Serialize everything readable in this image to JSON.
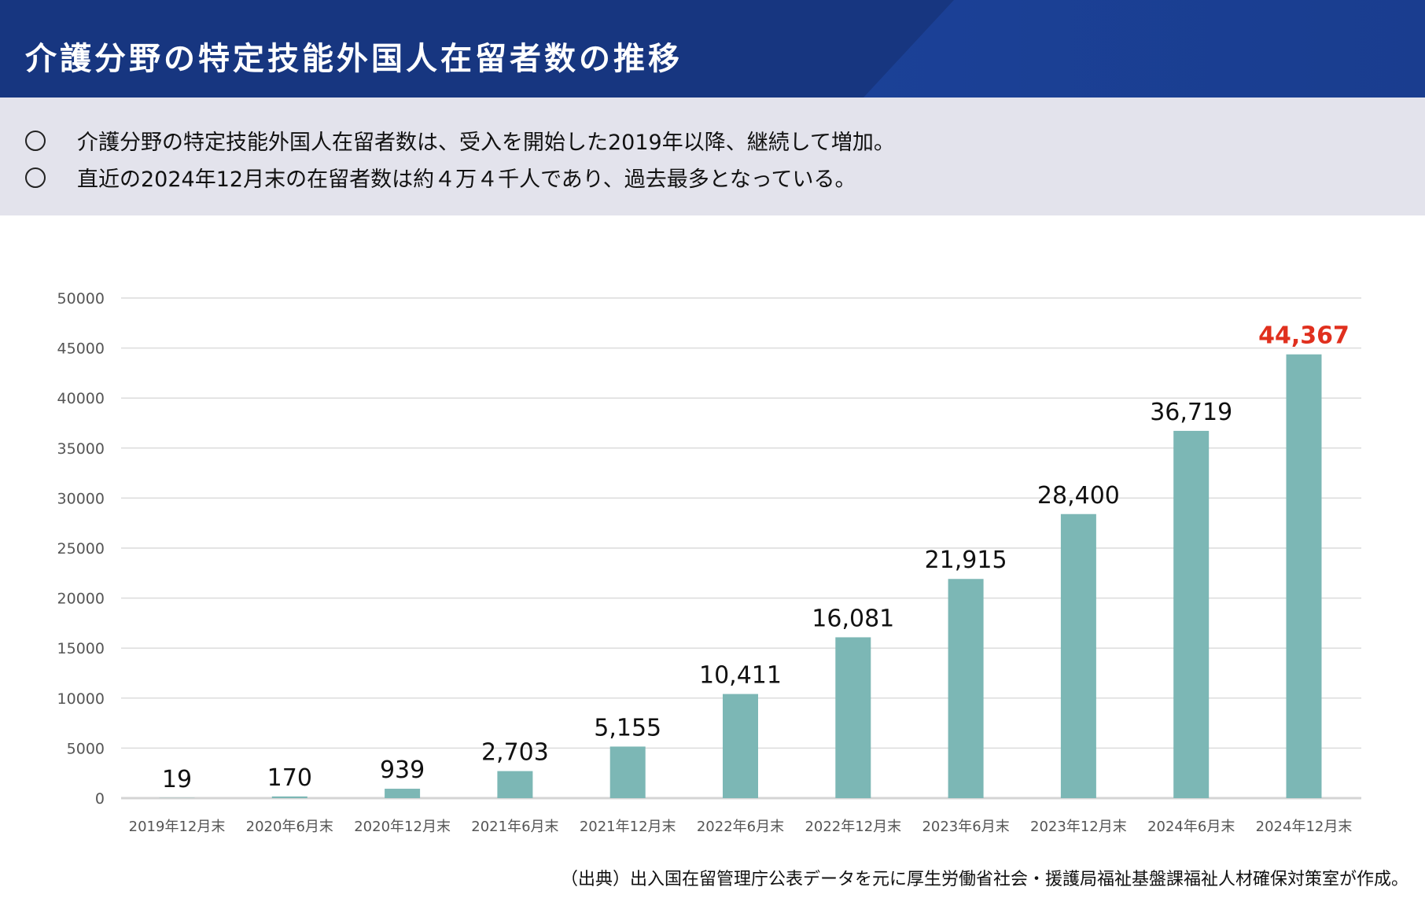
{
  "header": {
    "title": "介護分野の特定技能外国人在留者数の推移"
  },
  "summary": {
    "bullets": [
      "介護分野の特定技能外国人在留者数は、受入を開始した2019年以降、継続して増加。",
      "直近の2024年12月末の在留者数は約４万４千人であり、過去最多となっている。"
    ]
  },
  "chart_data": {
    "type": "bar",
    "categories": [
      "2019年12月末",
      "2020年6月末",
      "2020年12月末",
      "2021年6月末",
      "2021年12月末",
      "2022年6月末",
      "2022年12月末",
      "2023年6月末",
      "2023年12月末",
      "2024年6月末",
      "2024年12月末"
    ],
    "values": [
      19,
      170,
      939,
      2703,
      5155,
      10411,
      16081,
      21915,
      28400,
      36719,
      44367
    ],
    "data_labels": [
      "19",
      "170",
      "939",
      "2,703",
      "5,155",
      "10,411",
      "16,081",
      "21,915",
      "28,400",
      "36,719",
      "44,367"
    ],
    "yticks": [
      "0",
      "5000",
      "10000",
      "15000",
      "20000",
      "25000",
      "30000",
      "35000",
      "40000",
      "45000",
      "50000"
    ],
    "ylim": [
      0,
      50000
    ],
    "grid": true,
    "bar_color": "#7cb7b5",
    "highlight_color": "#e0301e",
    "highlight_index": 10
  },
  "source": "（出典）出入国在留管理庁公表データを元に厚生労働省社会・援護局福祉基盤課福祉人材確保対策室が作成。"
}
